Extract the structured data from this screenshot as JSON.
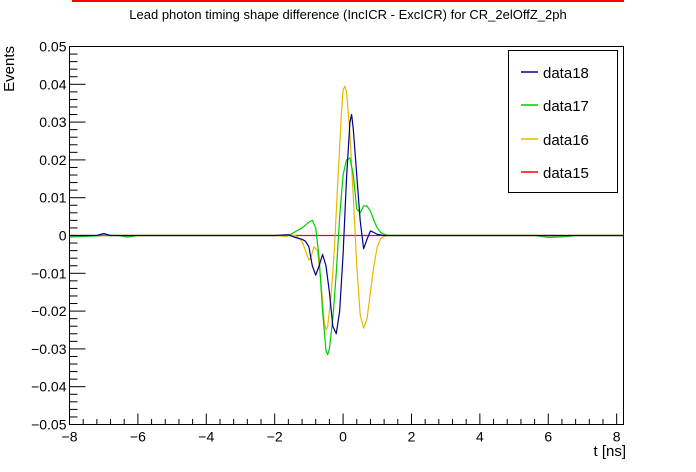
{
  "chart_data": {
    "type": "line",
    "title": "Lead photon timing shape difference (IncICR - ExcICR) for CR_2elOffZ_2ph",
    "xlabel": "t [ns]",
    "ylabel": "Events",
    "xlim": [
      -8,
      8.2
    ],
    "ylim": [
      -0.05,
      0.05
    ],
    "x_ticks": [
      -8,
      -6,
      -4,
      -2,
      0,
      2,
      4,
      6,
      8
    ],
    "y_ticks": [
      -0.05,
      -0.04,
      -0.03,
      -0.02,
      -0.01,
      0,
      0.01,
      0.02,
      0.03,
      0.04,
      0.05
    ],
    "x_tick_labels": [
      "−8",
      "−6",
      "−4",
      "−2",
      "0",
      "2",
      "4",
      "6",
      "8"
    ],
    "y_tick_labels": [
      "−0.05",
      "−0.04",
      "−0.03",
      "−0.02",
      "−0.01",
      "0",
      "0.01",
      "0.02",
      "0.03",
      "0.04",
      "0.05"
    ],
    "grid": false,
    "legend_position": "top-right",
    "series": [
      {
        "name": "data18",
        "color": "#00008b",
        "points": [
          [
            -8,
            0
          ],
          [
            -7.2,
            0
          ],
          [
            -7.0,
            0.0005
          ],
          [
            -6.8,
            0
          ],
          [
            -2,
            0
          ],
          [
            -1.6,
            0.0002
          ],
          [
            -1.4,
            -0.0005
          ],
          [
            -1.2,
            -0.001
          ],
          [
            -1.1,
            -0.0015
          ],
          [
            -1.0,
            -0.003
          ],
          [
            -0.9,
            -0.008
          ],
          [
            -0.8,
            -0.0105
          ],
          [
            -0.7,
            -0.008
          ],
          [
            -0.6,
            -0.005
          ],
          [
            -0.5,
            -0.008
          ],
          [
            -0.4,
            -0.015
          ],
          [
            -0.3,
            -0.024
          ],
          [
            -0.2,
            -0.026
          ],
          [
            -0.1,
            -0.02
          ],
          [
            0.0,
            -0.005
          ],
          [
            0.1,
            0.015
          ],
          [
            0.2,
            0.03
          ],
          [
            0.25,
            0.032
          ],
          [
            0.3,
            0.028
          ],
          [
            0.4,
            0.016
          ],
          [
            0.5,
            0.004
          ],
          [
            0.6,
            -0.0035
          ],
          [
            0.7,
            -0.001
          ],
          [
            0.8,
            0.0012
          ],
          [
            0.9,
            0.0008
          ],
          [
            1.0,
            0.0003
          ],
          [
            1.2,
            0
          ],
          [
            1.4,
            0
          ],
          [
            8.2,
            0
          ]
        ]
      },
      {
        "name": "data17",
        "color": "#00cc00",
        "points": [
          [
            -8,
            -0.0004
          ],
          [
            -7.5,
            -0.0002
          ],
          [
            -7.0,
            0
          ],
          [
            -6.6,
            0
          ],
          [
            -6.3,
            -0.0004
          ],
          [
            -6.0,
            0
          ],
          [
            -1.6,
            0
          ],
          [
            -1.4,
            0.001
          ],
          [
            -1.2,
            0.002
          ],
          [
            -1.0,
            0.0035
          ],
          [
            -0.9,
            0.004
          ],
          [
            -0.8,
            0.002
          ],
          [
            -0.7,
            -0.006
          ],
          [
            -0.6,
            -0.02
          ],
          [
            -0.5,
            -0.0305
          ],
          [
            -0.45,
            -0.0315
          ],
          [
            -0.4,
            -0.03
          ],
          [
            -0.3,
            -0.022
          ],
          [
            -0.2,
            -0.01
          ],
          [
            -0.1,
            0.005
          ],
          [
            0.0,
            0.016
          ],
          [
            0.1,
            0.02
          ],
          [
            0.2,
            0.0205
          ],
          [
            0.3,
            0.016
          ],
          [
            0.4,
            0.007
          ],
          [
            0.5,
            0.006
          ],
          [
            0.6,
            0.0078
          ],
          [
            0.7,
            0.0078
          ],
          [
            0.8,
            0.0065
          ],
          [
            0.9,
            0.004
          ],
          [
            1.0,
            0.002
          ],
          [
            1.1,
            0.0008
          ],
          [
            1.3,
            0
          ],
          [
            5.6,
            0
          ],
          [
            6.0,
            -0.0005
          ],
          [
            6.5,
            -0.0003
          ],
          [
            6.8,
            0
          ],
          [
            8.2,
            0
          ]
        ]
      },
      {
        "name": "data16",
        "color": "#e6b800",
        "points": [
          [
            -8,
            0
          ],
          [
            -2,
            0
          ],
          [
            -1.7,
            -0.0002
          ],
          [
            -1.4,
            0
          ],
          [
            -1.2,
            -0.0015
          ],
          [
            -1.1,
            -0.004
          ],
          [
            -1.0,
            -0.0065
          ],
          [
            -0.95,
            -0.006
          ],
          [
            -0.85,
            -0.003
          ],
          [
            -0.75,
            -0.004
          ],
          [
            -0.65,
            -0.012
          ],
          [
            -0.55,
            -0.023
          ],
          [
            -0.5,
            -0.025
          ],
          [
            -0.45,
            -0.024
          ],
          [
            -0.35,
            -0.016
          ],
          [
            -0.25,
            -0.003
          ],
          [
            -0.15,
            0.015
          ],
          [
            -0.05,
            0.032
          ],
          [
            0.0,
            0.0385
          ],
          [
            0.05,
            0.0395
          ],
          [
            0.1,
            0.038
          ],
          [
            0.2,
            0.027
          ],
          [
            0.3,
            0.01
          ],
          [
            0.4,
            -0.008
          ],
          [
            0.5,
            -0.021
          ],
          [
            0.6,
            -0.0245
          ],
          [
            0.7,
            -0.022
          ],
          [
            0.8,
            -0.015
          ],
          [
            0.9,
            -0.008
          ],
          [
            1.0,
            -0.003
          ],
          [
            1.1,
            -0.0008
          ],
          [
            1.25,
            0
          ],
          [
            8.2,
            0
          ]
        ]
      },
      {
        "name": "data15",
        "color": "#ff0000",
        "points": [
          [
            -8,
            0
          ],
          [
            8.2,
            0
          ]
        ]
      }
    ]
  }
}
